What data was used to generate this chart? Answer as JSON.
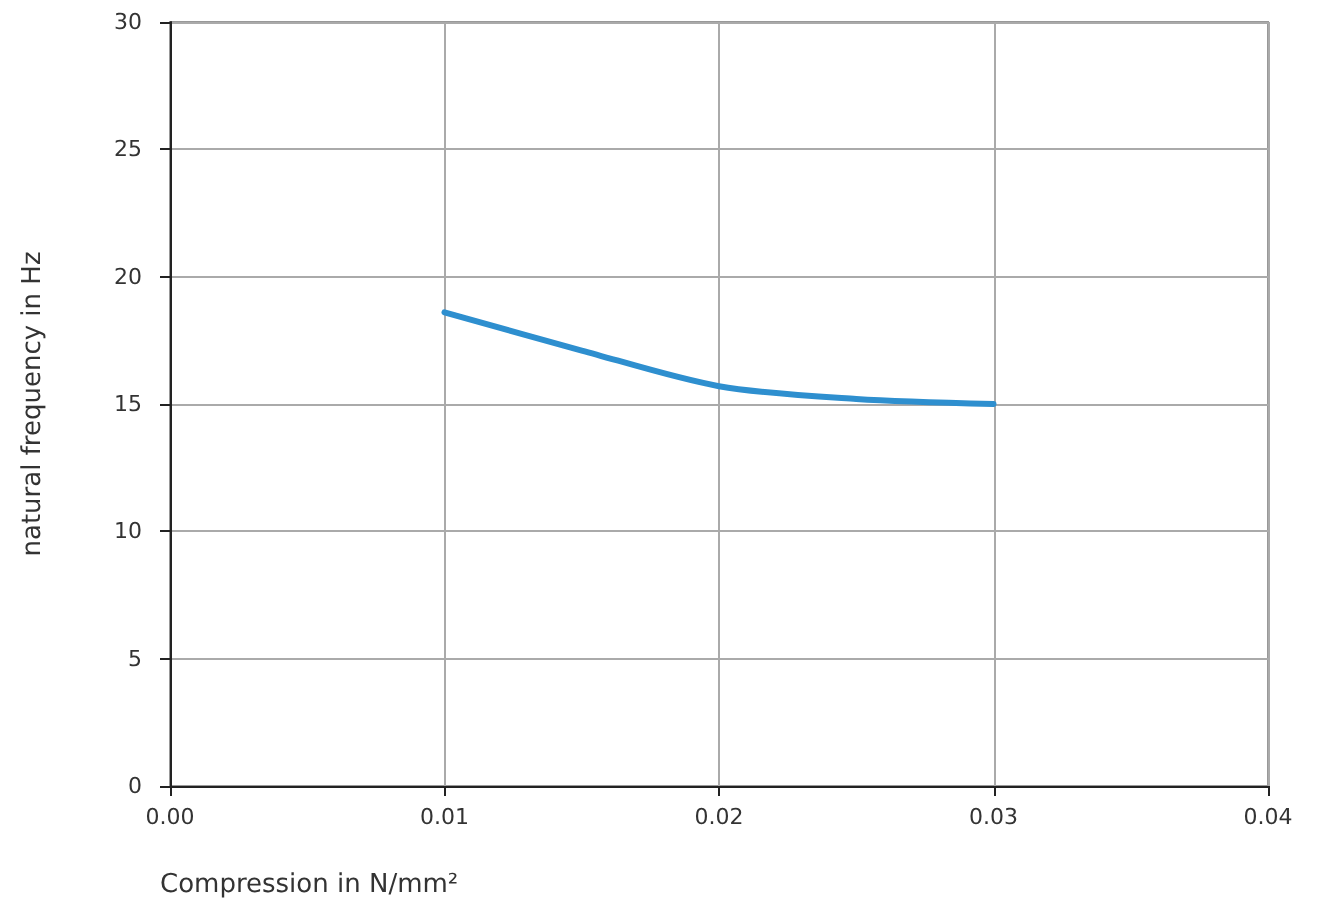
{
  "chart_data": {
    "type": "line",
    "xlabel": "Compression in N/mm²",
    "ylabel": "natural frequency in Hz",
    "x": [
      0.01,
      0.015,
      0.02,
      0.025,
      0.03
    ],
    "series": [
      {
        "color": "#2e8fcf",
        "values": [
          18.6,
          17.1,
          15.7,
          15.2,
          15.0
        ]
      }
    ],
    "xlim": [
      0,
      0.04
    ],
    "xticks": [
      {
        "value": 0,
        "label": "0.00"
      },
      {
        "value": 0.01,
        "label": "0.01"
      },
      {
        "value": 0.02,
        "label": "0.02"
      },
      {
        "value": 0.03,
        "label": "0.03"
      },
      {
        "value": 0.04,
        "label": "0.04"
      }
    ],
    "ylim": [
      0,
      30
    ],
    "yticks": [
      0,
      5,
      10,
      15,
      20,
      25,
      30
    ],
    "grid": true,
    "marker": "none",
    "line_style": "solid"
  }
}
